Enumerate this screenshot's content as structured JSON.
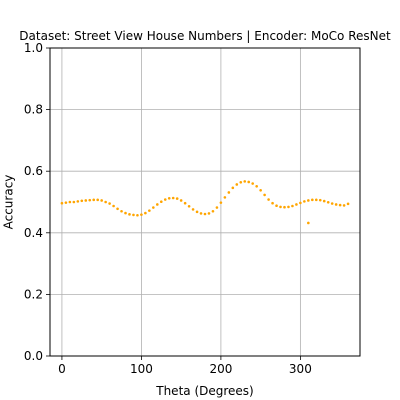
{
  "chart_data": {
    "type": "scatter",
    "title": "Dataset: Street View House Numbers | Encoder: MoCo ResNet",
    "xlabel": "Theta (Degrees)",
    "ylabel": "Accuracy",
    "xlim": [
      -15,
      375
    ],
    "ylim": [
      0.0,
      1.0
    ],
    "xticks": [
      0,
      100,
      200,
      300
    ],
    "yticks": [
      0.0,
      0.2,
      0.4,
      0.6,
      0.8,
      1.0
    ],
    "xtick_labels": [
      "0",
      "100",
      "200",
      "300"
    ],
    "ytick_labels": [
      "0.0",
      "0.2",
      "0.4",
      "0.6",
      "0.8",
      "1.0"
    ],
    "grid": true,
    "marker_color": "#ffa500",
    "series": [
      {
        "x": [
          0,
          5,
          10,
          15,
          20,
          25,
          30,
          35,
          40,
          45,
          50,
          55,
          60,
          65,
          70,
          75,
          80,
          85,
          90,
          95,
          100,
          105,
          110,
          115,
          120,
          125,
          130,
          135,
          140,
          145,
          150,
          155,
          160,
          165,
          170,
          175,
          180,
          185,
          190,
          195,
          200,
          205,
          210,
          215,
          220,
          225,
          230,
          235,
          240,
          245,
          250,
          255,
          260,
          265,
          270,
          275,
          280,
          285,
          290,
          295,
          300,
          305,
          310,
          315,
          320,
          325,
          330,
          335,
          340,
          345,
          350,
          355,
          360,
          310
        ],
        "y": [
          0.496,
          0.498,
          0.5,
          0.5,
          0.502,
          0.504,
          0.505,
          0.506,
          0.507,
          0.507,
          0.505,
          0.5,
          0.495,
          0.487,
          0.478,
          0.47,
          0.464,
          0.46,
          0.458,
          0.457,
          0.459,
          0.464,
          0.472,
          0.482,
          0.492,
          0.501,
          0.508,
          0.512,
          0.513,
          0.511,
          0.505,
          0.496,
          0.486,
          0.476,
          0.468,
          0.463,
          0.461,
          0.463,
          0.47,
          0.482,
          0.498,
          0.515,
          0.531,
          0.546,
          0.557,
          0.564,
          0.567,
          0.565,
          0.56,
          0.551,
          0.538,
          0.523,
          0.508,
          0.496,
          0.488,
          0.484,
          0.483,
          0.484,
          0.487,
          0.492,
          0.497,
          0.502,
          0.505,
          0.507,
          0.507,
          0.506,
          0.503,
          0.499,
          0.495,
          0.492,
          0.49,
          0.489,
          0.494,
          0.432
        ]
      }
    ]
  }
}
